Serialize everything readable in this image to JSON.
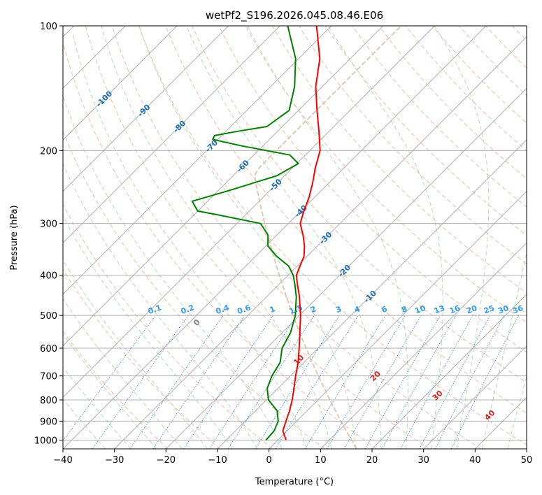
{
  "chart_data": {
    "type": "line",
    "title": "wetPf2_S196.2026.045.08.46.E06",
    "xlabel": "Temperature (°C)",
    "ylabel": "Pressure (hPa)",
    "xlim": [
      -40,
      50
    ],
    "ylim_pressure": [
      1050,
      100
    ],
    "x_ticks": [
      -40,
      -30,
      -20,
      -10,
      0,
      10,
      20,
      30,
      40,
      50
    ],
    "x_tick_labels": [
      "−40",
      "−30",
      "−20",
      "−10",
      "0",
      "10",
      "20",
      "30",
      "40",
      "50"
    ],
    "y_ticks": [
      1000,
      900,
      800,
      700,
      600,
      500,
      400,
      300,
      200,
      100
    ],
    "y_tick_labels": [
      "1000",
      "900",
      "800",
      "700",
      "600",
      "500",
      "400",
      "300",
      "200",
      "100"
    ],
    "grid": "on",
    "colors": {
      "temperature": "#ff0000",
      "dewpoint": "#008000",
      "isotherm": "#b0b0b0",
      "dry_adiabat": "#f4a582",
      "moist_adiabat": "#a6d8a6",
      "mixing_ratio": "#1f77d4",
      "isotherm_label": "#1f6fb4",
      "moist_label": "#d62728",
      "zero_label": "#808080",
      "mixing_label": "#3399ee",
      "std_atmosphere": "#d9c4a8"
    },
    "series": [
      {
        "name": "Temperature",
        "points": [
          {
            "p": 1000,
            "t": 1.6
          },
          {
            "p": 950,
            "t": -0.8
          },
          {
            "p": 900,
            "t": -2.1
          },
          {
            "p": 850,
            "t": -3.4
          },
          {
            "p": 800,
            "t": -5.0
          },
          {
            "p": 750,
            "t": -6.9
          },
          {
            "p": 700,
            "t": -9.0
          },
          {
            "p": 650,
            "t": -11.1
          },
          {
            "p": 600,
            "t": -13.7
          },
          {
            "p": 550,
            "t": -16.6
          },
          {
            "p": 500,
            "t": -19.8
          },
          {
            "p": 450,
            "t": -23.7
          },
          {
            "p": 420,
            "t": -26.5
          },
          {
            "p": 400,
            "t": -28.4
          },
          {
            "p": 380,
            "t": -29.5
          },
          {
            "p": 360,
            "t": -30.6
          },
          {
            "p": 340,
            "t": -32.5
          },
          {
            "p": 320,
            "t": -34.9
          },
          {
            "p": 300,
            "t": -37.7
          },
          {
            "p": 280,
            "t": -39.4
          },
          {
            "p": 260,
            "t": -41.0
          },
          {
            "p": 240,
            "t": -43.1
          },
          {
            "p": 220,
            "t": -45.6
          },
          {
            "p": 200,
            "t": -48.0
          },
          {
            "p": 180,
            "t": -51.9
          },
          {
            "p": 160,
            "t": -56.4
          },
          {
            "p": 140,
            "t": -61.3
          },
          {
            "p": 120,
            "t": -65.9
          },
          {
            "p": 100,
            "t": -72.9
          }
        ]
      },
      {
        "name": "Dewpoint",
        "points": [
          {
            "p": 1000,
            "t": -2.3
          },
          {
            "p": 950,
            "t": -2.5
          },
          {
            "p": 900,
            "t": -3.6
          },
          {
            "p": 850,
            "t": -5.8
          },
          {
            "p": 800,
            "t": -9.6
          },
          {
            "p": 750,
            "t": -12.1
          },
          {
            "p": 700,
            "t": -13.6
          },
          {
            "p": 650,
            "t": -14.6
          },
          {
            "p": 600,
            "t": -17.0
          },
          {
            "p": 550,
            "t": -18.4
          },
          {
            "p": 500,
            "t": -20.8
          },
          {
            "p": 450,
            "t": -24.3
          },
          {
            "p": 420,
            "t": -27.0
          },
          {
            "p": 400,
            "t": -29.0
          },
          {
            "p": 380,
            "t": -31.7
          },
          {
            "p": 360,
            "t": -35.9
          },
          {
            "p": 340,
            "t": -39.6
          },
          {
            "p": 320,
            "t": -41.7
          },
          {
            "p": 300,
            "t": -45.4
          },
          {
            "p": 285,
            "t": -56.0
          },
          {
            "p": 280,
            "t": -60.0
          },
          {
            "p": 265,
            "t": -63.0
          },
          {
            "p": 250,
            "t": -58.0
          },
          {
            "p": 230,
            "t": -51.5
          },
          {
            "p": 215,
            "t": -49.7
          },
          {
            "p": 205,
            "t": -53.0
          },
          {
            "p": 195,
            "t": -64.0
          },
          {
            "p": 188,
            "t": -71.0
          },
          {
            "p": 184,
            "t": -71.4
          },
          {
            "p": 180,
            "t": -68.0
          },
          {
            "p": 175,
            "t": -63.0
          },
          {
            "p": 160,
            "t": -61.8
          },
          {
            "p": 140,
            "t": -65.4
          },
          {
            "p": 120,
            "t": -70.6
          },
          {
            "p": 100,
            "t": -78.5
          }
        ]
      }
    ],
    "isotherm_labels": [
      "-100",
      "-90",
      "-80",
      "-70",
      "-60",
      "-50",
      "-40",
      "-30",
      "-20",
      "-10"
    ],
    "moist_adiabat_labels": [
      "0",
      "10",
      "20",
      "30",
      "40"
    ],
    "mixing_ratio_labels": [
      "0.1",
      "0.2",
      "0.4",
      "0.6",
      "1",
      "1.5",
      "2",
      "3",
      "4",
      "6",
      "8",
      "10",
      "13",
      "16",
      "20",
      "25",
      "30",
      "36"
    ]
  }
}
